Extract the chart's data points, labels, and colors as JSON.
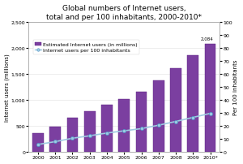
{
  "title": "Global numbers of Internet users,\ntotal and per 100 inhabitants, 2000-2010*",
  "years": [
    "2000",
    "2001",
    "2002",
    "2003",
    "2004",
    "2005",
    "2006",
    "2007",
    "2008",
    "2009",
    "2010*"
  ],
  "internet_users_millions": [
    361,
    493,
    665,
    781,
    913,
    1024,
    1154,
    1373,
    1611,
    1858,
    2084
  ],
  "per_100_inhabitants": [
    5.8,
    8.0,
    10.6,
    12.5,
    14.6,
    16.3,
    18.0,
    20.6,
    23.5,
    26.6,
    29.7
  ],
  "bar_color": "#7B3FA0",
  "bar_edge_color": "#5B2080",
  "line_color": "#9ECAE1",
  "line_marker_facecolor": "#9ECAE1",
  "bg_color": "#FFFFFF",
  "plot_bg_color": "#FFFFFF",
  "ylabel_left": "Internet users (millions)",
  "ylabel_right": "Per 100 inhabitants",
  "ylim_left": [
    0,
    2500
  ],
  "ylim_right": [
    0,
    100
  ],
  "yticks_left": [
    0,
    500,
    1000,
    1500,
    2000,
    2500
  ],
  "yticks_right": [
    0,
    10,
    20,
    30,
    40,
    50,
    60,
    70,
    80,
    90,
    100
  ],
  "annotation_value": "2,084",
  "legend_bar_label": "Estimated Internet users (in millions)",
  "legend_line_label": "Internet users per 100 inhabitants",
  "title_fontsize": 6.5,
  "axis_fontsize": 5.0,
  "tick_fontsize": 4.5,
  "legend_fontsize": 4.5
}
